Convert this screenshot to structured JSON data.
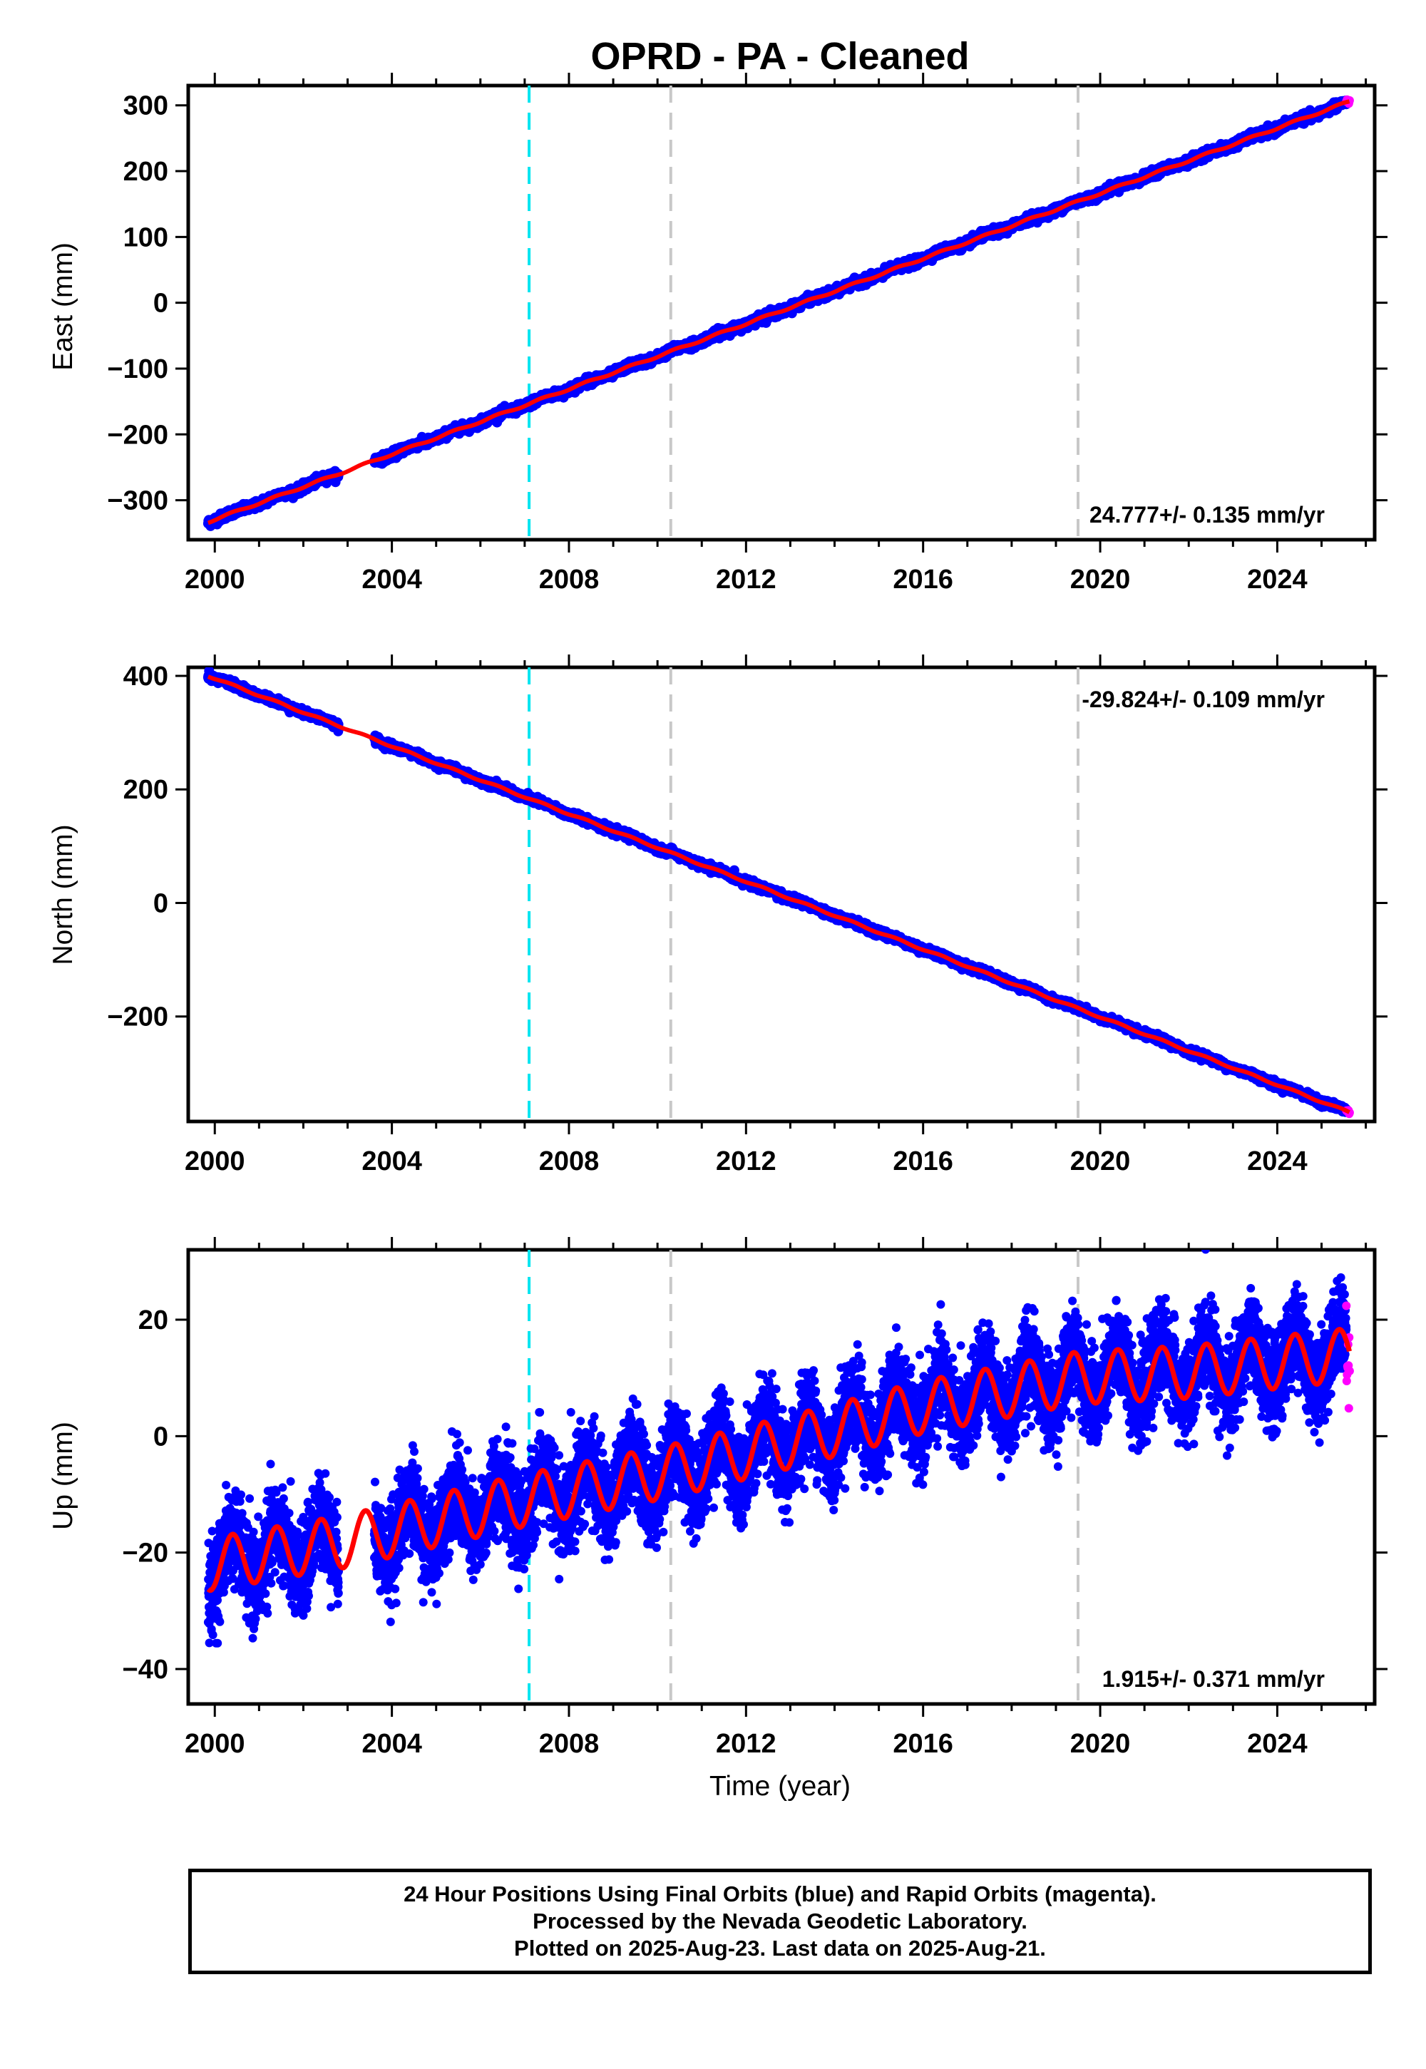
{
  "chart_data": {
    "title": "OPRD  - PA - Cleaned",
    "type": "scatter",
    "xlabel": "Time (year)",
    "xlim": [
      1999.4,
      2026.2
    ],
    "x_ticks": [
      2000,
      2004,
      2008,
      2012,
      2016,
      2020,
      2024
    ],
    "data_start": 1999.85,
    "data_end": 2025.64,
    "gap": [
      2002.8,
      2003.6
    ],
    "vertical_lines": [
      {
        "x": 2007.1,
        "color": "#00e5f0",
        "style": "dashed"
      },
      {
        "x": 2010.3,
        "color": "#c8c8c8",
        "style": "dashed"
      },
      {
        "x": 2019.5,
        "color": "#c8c8c8",
        "style": "dashed"
      }
    ],
    "colors": {
      "final": "#0000ff",
      "rapid": "#ff00ff",
      "model": "#ff0000"
    },
    "legend_series": [
      "Final Orbits (blue)",
      "Rapid Orbits (magenta)"
    ],
    "panels": [
      {
        "ylabel": "East (mm)",
        "ylim": [
          -360,
          330
        ],
        "yticks": [
          -300,
          -200,
          -100,
          0,
          100,
          200,
          300
        ],
        "rate_label": "24.777+/- 0.135 mm/yr",
        "rate_position": "bottom-right",
        "value_at_start": -333,
        "rate": 24.777,
        "annual_amp": 1.5,
        "scatter": 3
      },
      {
        "ylabel": "North (mm)",
        "ylim": [
          -385,
          415
        ],
        "yticks": [
          -200,
          0,
          200,
          400
        ],
        "rate_label": "-29.824+/- 0.109 mm/yr",
        "rate_position": "top-right",
        "value_at_start": 400,
        "rate": -29.824,
        "annual_amp": 1.5,
        "scatter": 3
      },
      {
        "ylabel": "Up (mm)",
        "ylim": [
          -46,
          32
        ],
        "yticks": [
          -40,
          -20,
          0,
          20
        ],
        "rate_label": "1.915+/- 0.371 mm/yr",
        "rate_position": "bottom-right",
        "trend_points": [
          [
            1999.9,
            -22
          ],
          [
            2003,
            -18
          ],
          [
            2007,
            -11
          ],
          [
            2010.3,
            -6
          ],
          [
            2013,
            -1
          ],
          [
            2016,
            5
          ],
          [
            2019.5,
            10
          ],
          [
            2022,
            11
          ],
          [
            2025.6,
            14
          ]
        ],
        "annual_amp": 4.5,
        "scatter": 3.8
      }
    ]
  },
  "footer": {
    "line1": "24 Hour Positions Using Final Orbits (blue) and Rapid Orbits (magenta).",
    "line2": "Processed by the Nevada Geodetic Laboratory.",
    "line3": "Plotted on 2025-Aug-23. Last data on 2025-Aug-21."
  }
}
